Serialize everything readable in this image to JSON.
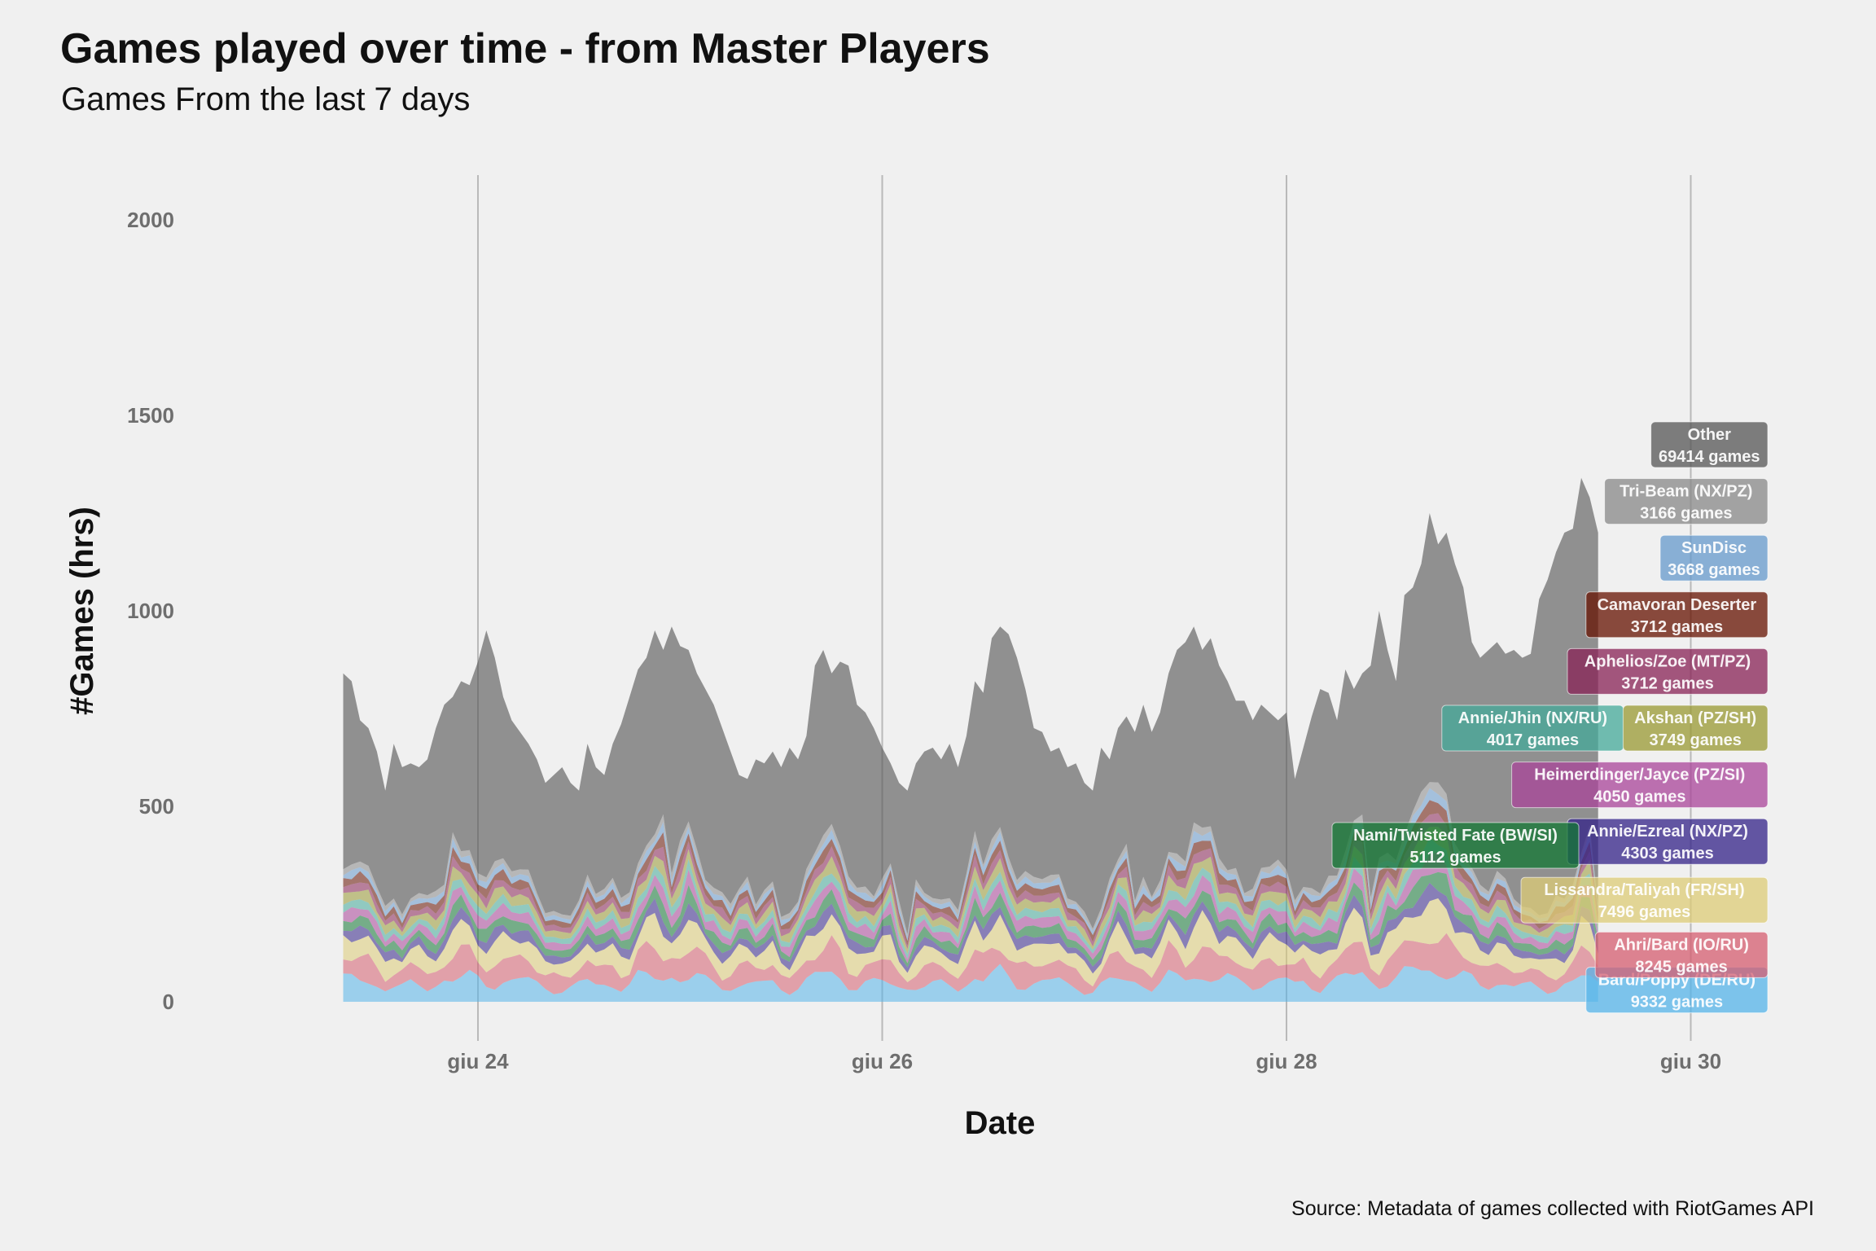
{
  "title": "Games played over time - from Master Players",
  "subtitle": "Games From the last 7 days",
  "caption": "Source: Metadata of games collected with RiotGames API",
  "chart_data": {
    "type": "area",
    "stacked": true,
    "xlabel": "Date",
    "ylabel": "#Games (hrs)",
    "x_ticks": [
      "giu 24",
      "giu 26",
      "giu 28",
      "giu 30"
    ],
    "y_ticks": [
      0,
      500,
      1000,
      1500,
      2000
    ],
    "ylim": [
      0,
      2100
    ],
    "x_start_hour": 8,
    "x_end_hour": 178,
    "grid": "vertical major lines only",
    "legend": "direct labels at right edge",
    "total_profile": [
      [
        8,
        840
      ],
      [
        9,
        820
      ],
      [
        10,
        720
      ],
      [
        11,
        700
      ],
      [
        12,
        640
      ],
      [
        13,
        540
      ],
      [
        14,
        660
      ],
      [
        15,
        600
      ],
      [
        16,
        610
      ],
      [
        17,
        600
      ],
      [
        18,
        620
      ],
      [
        19,
        700
      ],
      [
        20,
        760
      ],
      [
        21,
        780
      ],
      [
        22,
        820
      ],
      [
        23,
        810
      ],
      [
        24,
        870
      ],
      [
        25,
        950
      ],
      [
        26,
        880
      ],
      [
        27,
        780
      ],
      [
        28,
        720
      ],
      [
        29,
        690
      ],
      [
        30,
        660
      ],
      [
        31,
        620
      ],
      [
        32,
        560
      ],
      [
        33,
        580
      ],
      [
        34,
        600
      ],
      [
        35,
        560
      ],
      [
        36,
        540
      ],
      [
        37,
        660
      ],
      [
        38,
        600
      ],
      [
        39,
        580
      ],
      [
        40,
        660
      ],
      [
        41,
        710
      ],
      [
        42,
        780
      ],
      [
        43,
        850
      ],
      [
        44,
        880
      ],
      [
        45,
        950
      ],
      [
        46,
        900
      ],
      [
        47,
        960
      ],
      [
        48,
        910
      ],
      [
        49,
        900
      ],
      [
        50,
        840
      ],
      [
        51,
        800
      ],
      [
        52,
        760
      ],
      [
        53,
        700
      ],
      [
        54,
        640
      ],
      [
        55,
        580
      ],
      [
        56,
        570
      ],
      [
        57,
        620
      ],
      [
        58,
        610
      ],
      [
        59,
        640
      ],
      [
        60,
        600
      ],
      [
        61,
        650
      ],
      [
        62,
        620
      ],
      [
        63,
        680
      ],
      [
        64,
        860
      ],
      [
        65,
        900
      ],
      [
        66,
        840
      ],
      [
        67,
        870
      ],
      [
        68,
        860
      ],
      [
        69,
        760
      ],
      [
        70,
        740
      ],
      [
        71,
        700
      ],
      [
        72,
        650
      ],
      [
        73,
        610
      ],
      [
        74,
        560
      ],
      [
        75,
        540
      ],
      [
        76,
        610
      ],
      [
        77,
        640
      ],
      [
        78,
        650
      ],
      [
        79,
        620
      ],
      [
        80,
        660
      ],
      [
        81,
        600
      ],
      [
        82,
        680
      ],
      [
        83,
        820
      ],
      [
        84,
        790
      ],
      [
        85,
        930
      ],
      [
        86,
        960
      ],
      [
        87,
        940
      ],
      [
        88,
        880
      ],
      [
        89,
        800
      ],
      [
        90,
        700
      ],
      [
        91,
        690
      ],
      [
        92,
        640
      ],
      [
        93,
        650
      ],
      [
        94,
        600
      ],
      [
        95,
        610
      ],
      [
        96,
        560
      ],
      [
        97,
        540
      ],
      [
        98,
        650
      ],
      [
        99,
        620
      ],
      [
        100,
        700
      ],
      [
        101,
        730
      ],
      [
        102,
        690
      ],
      [
        103,
        760
      ],
      [
        104,
        690
      ],
      [
        105,
        740
      ],
      [
        106,
        840
      ],
      [
        107,
        900
      ],
      [
        108,
        920
      ],
      [
        109,
        960
      ],
      [
        110,
        900
      ],
      [
        111,
        930
      ],
      [
        112,
        860
      ],
      [
        113,
        820
      ],
      [
        114,
        770
      ],
      [
        115,
        770
      ],
      [
        116,
        720
      ],
      [
        117,
        760
      ],
      [
        118,
        740
      ],
      [
        119,
        720
      ],
      [
        120,
        740
      ],
      [
        121,
        570
      ],
      [
        122,
        650
      ],
      [
        123,
        730
      ],
      [
        124,
        800
      ],
      [
        125,
        790
      ],
      [
        126,
        720
      ],
      [
        127,
        850
      ],
      [
        128,
        800
      ],
      [
        129,
        840
      ],
      [
        130,
        860
      ],
      [
        131,
        1000
      ],
      [
        132,
        900
      ],
      [
        133,
        820
      ],
      [
        134,
        1040
      ],
      [
        135,
        1060
      ],
      [
        136,
        1120
      ],
      [
        137,
        1250
      ],
      [
        138,
        1170
      ],
      [
        139,
        1200
      ],
      [
        140,
        1120
      ],
      [
        141,
        1060
      ],
      [
        142,
        920
      ],
      [
        143,
        880
      ],
      [
        144,
        900
      ],
      [
        145,
        920
      ],
      [
        146,
        890
      ],
      [
        147,
        900
      ],
      [
        148,
        880
      ],
      [
        149,
        890
      ],
      [
        150,
        1030
      ],
      [
        151,
        1080
      ],
      [
        152,
        1150
      ],
      [
        153,
        1200
      ],
      [
        154,
        1210
      ],
      [
        155,
        1340
      ],
      [
        156,
        1290
      ],
      [
        157,
        1200
      ]
    ],
    "series": [
      {
        "name": "Bard/Poppy (DE/RU)",
        "color": "#56B4E9",
        "weight": 0.138,
        "total": "9332 games",
        "label_value": 30
      },
      {
        "name": "Ahri/Bard (IO/RU)",
        "color": "#D55E70",
        "weight": 0.135,
        "total": "8245 games",
        "label_value": 120
      },
      {
        "name": "Lissandra/Taliyah (FR/SH)",
        "color": "#DDCC77",
        "weight": 0.135,
        "total": "7496 games",
        "label_value": 260
      },
      {
        "name": "Annie/Ezreal (NX/PZ)",
        "color": "#332288",
        "weight": 0.06,
        "total": "4303 games",
        "label_value": 410
      },
      {
        "name": "Nami/Twisted Fate (BW/SI)",
        "color": "#117733",
        "weight": 0.066,
        "total": "5112 games",
        "label_value": 400
      },
      {
        "name": "Heimerdinger/Jayce (PZ/SI)",
        "color": "#AA4499",
        "weight": 0.065,
        "total": "4050 games",
        "label_value": 555
      },
      {
        "name": "Annie/Jhin (NX/RU)",
        "color": "#44AA99",
        "weight": 0.052,
        "total": "4017 games",
        "label_value": 700
      },
      {
        "name": "Akshan (PZ/SH)",
        "color": "#999933",
        "weight": 0.062,
        "total": "3749 games",
        "label_value": 700
      },
      {
        "name": "Aphelios/Zoe (MT/PZ)",
        "color": "#882255",
        "weight": 0.05,
        "total": "3712 games",
        "label_value": 845
      },
      {
        "name": "Camavoran Deserter",
        "color": "#661100",
        "weight": 0.05,
        "total": "3712 games",
        "label_value": 990
      },
      {
        "name": "SunDisc",
        "color": "#6699CC",
        "weight": 0.04,
        "total": "3668 games",
        "label_value": 1135
      },
      {
        "name": "Tri-Beam (NX/PZ)",
        "color": "#888888",
        "weight": 0.038,
        "total": "3166 games",
        "label_value": 1280
      },
      {
        "name": "Other",
        "color": "#555555",
        "weight": 0,
        "total": "69414 games",
        "label_value": 1425
      }
    ]
  }
}
